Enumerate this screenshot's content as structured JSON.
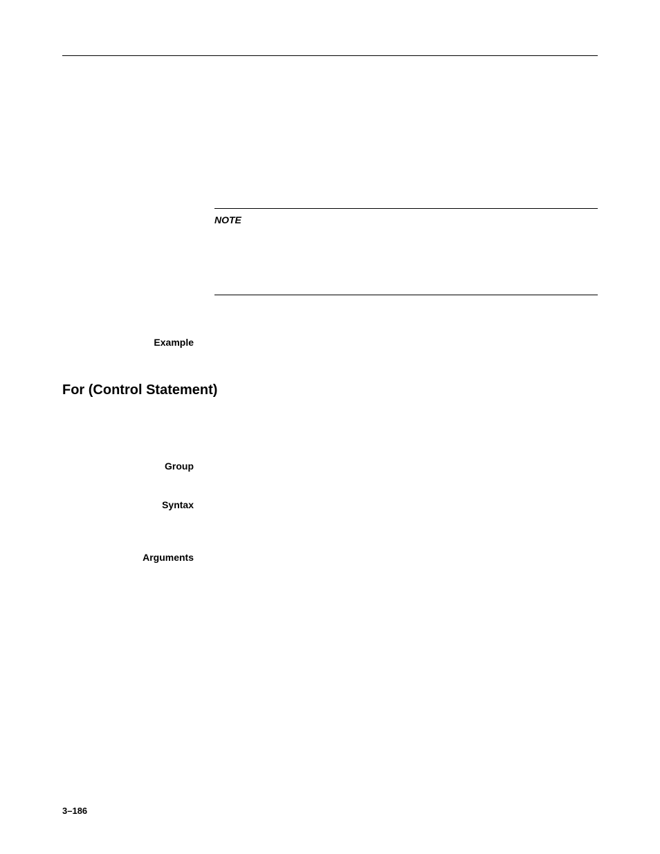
{
  "note": {
    "label": "NOTE"
  },
  "sections": {
    "example": {
      "label": "Example"
    },
    "heading": "For (Control Statement)",
    "group": {
      "label": "Group"
    },
    "syntax": {
      "label": "Syntax"
    },
    "arguments": {
      "label": "Arguments"
    }
  },
  "page_number": "3–186",
  "styles": {
    "background_color": "#ffffff",
    "text_color": "#000000",
    "rule_color": "#000000",
    "heading_fontsize": 20,
    "label_fontsize": 14,
    "page_number_fontsize": 13
  }
}
